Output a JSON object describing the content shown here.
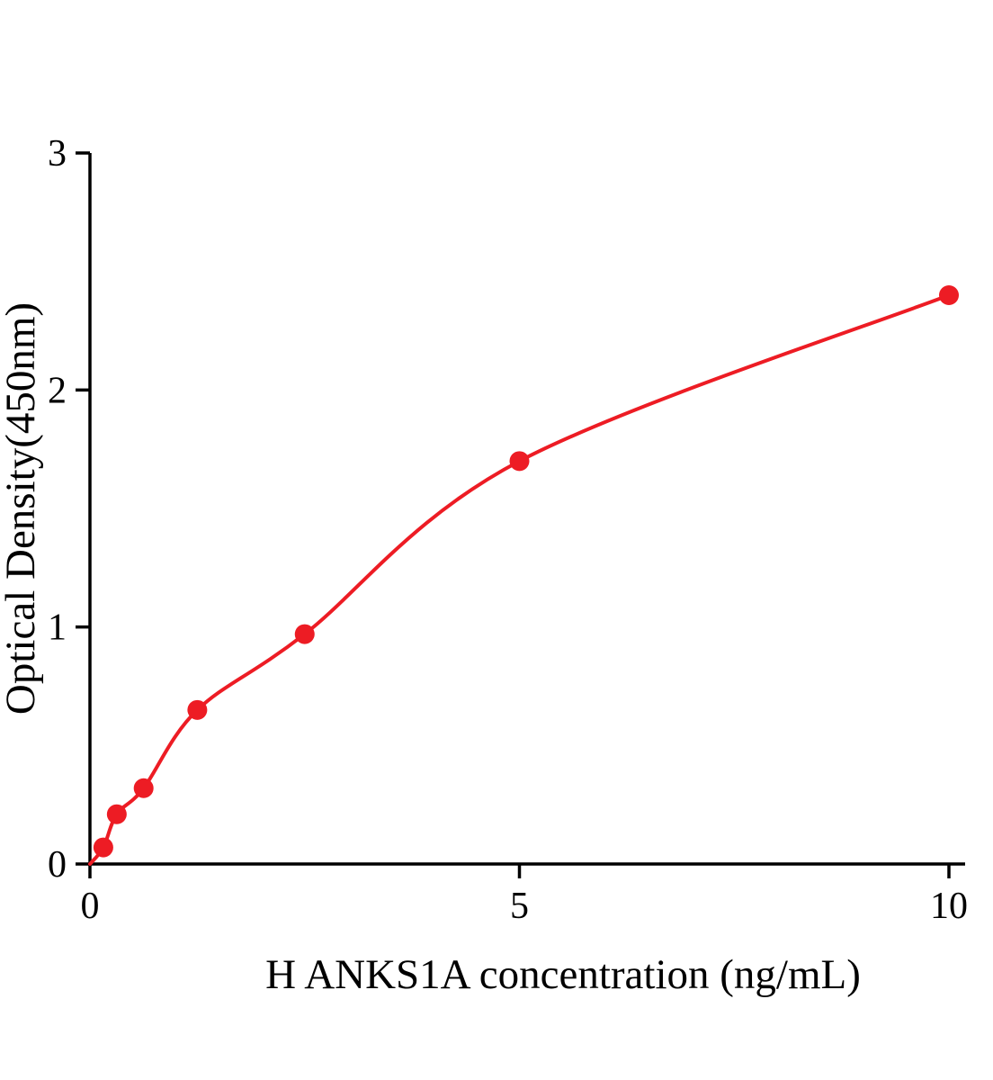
{
  "chart_data": {
    "type": "scatter",
    "title": "",
    "xlabel": "H ANKS1A concentration (ng/mL)",
    "ylabel": "Optical Density(450nm)",
    "x": [
      0.156,
      0.3125,
      0.625,
      1.25,
      2.5,
      5,
      10
    ],
    "y": [
      0.07,
      0.21,
      0.32,
      0.65,
      0.97,
      1.7,
      2.4
    ],
    "curve_start": [
      0,
      0
    ],
    "xlim": [
      0,
      10
    ],
    "ylim": [
      0,
      3
    ],
    "xticks": [
      0,
      5,
      10
    ],
    "yticks": [
      0,
      1,
      2,
      3
    ],
    "grid": false,
    "legend_position": "none",
    "series_color": "#ed1c24",
    "axis_color": "#000000",
    "marker": "circle",
    "marker_radius": 11,
    "line_width": 4
  }
}
